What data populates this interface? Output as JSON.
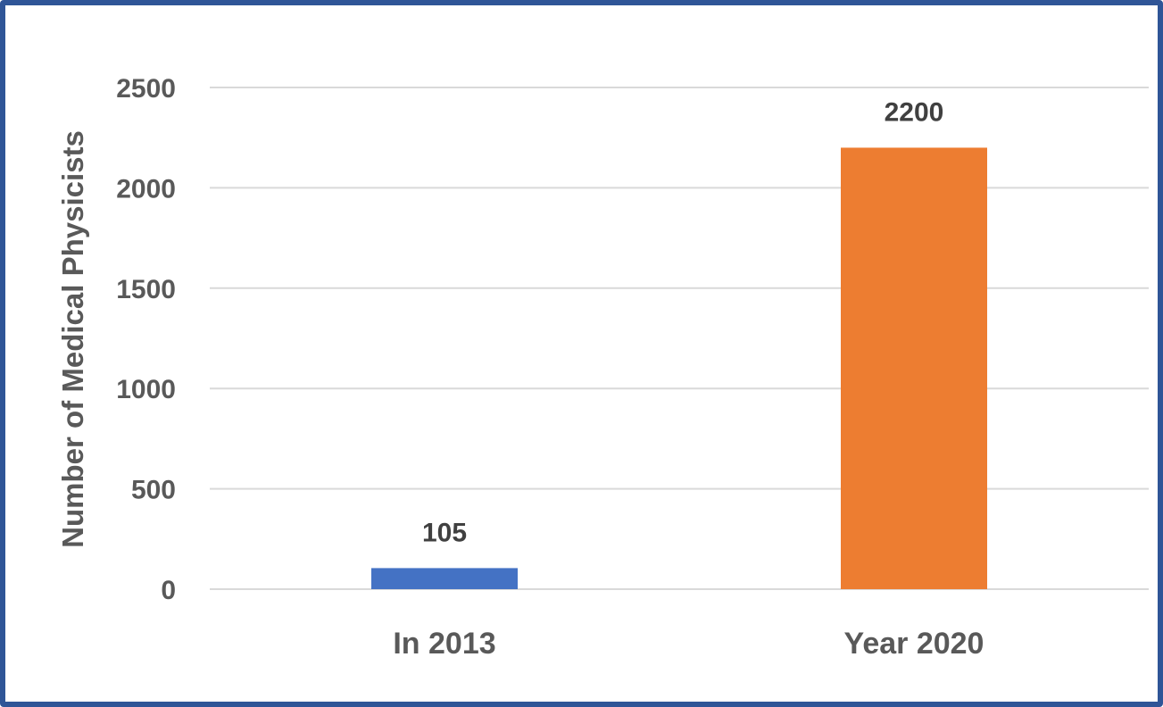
{
  "chart_data": {
    "type": "bar",
    "title": "",
    "xlabel": "",
    "ylabel": "Number of Medical Physicists",
    "categories": [
      "In 2013",
      "Year 2020"
    ],
    "values": [
      105,
      2200
    ],
    "value_labels": [
      "105",
      "2200"
    ],
    "bar_colors": [
      "#4472c4",
      "#ed7d31"
    ],
    "ylim": [
      0,
      2500
    ],
    "yticks": [
      0,
      500,
      1000,
      1500,
      2000,
      2500
    ],
    "ytick_labels": [
      "0",
      "500",
      "1000",
      "1500",
      "2000",
      "2500"
    ],
    "grid": true,
    "legend": "none"
  },
  "colors": {
    "frame_border": "#2f5597",
    "gridline": "#d9d9d9",
    "text": "#595959"
  }
}
